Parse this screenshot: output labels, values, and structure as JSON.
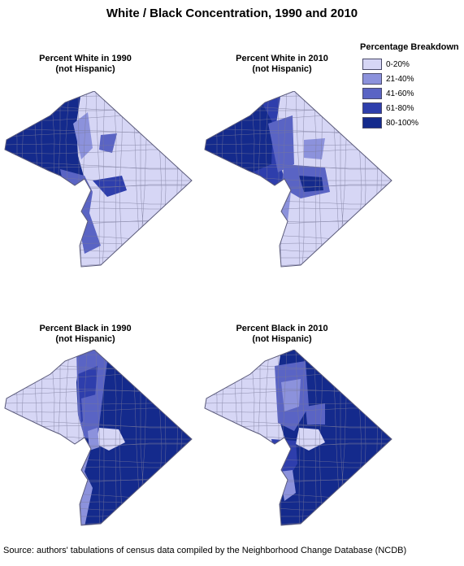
{
  "title": "White / Black Concentration, 1990 and 2010",
  "panels": [
    {
      "line1": "Percent White in 1990",
      "line2": "(not Hispanic)"
    },
    {
      "line1": "Percent White in 2010",
      "line2": "(not Hispanic)"
    },
    {
      "line1": "Percent Black in 1990",
      "line2": "(not Hispanic)"
    },
    {
      "line1": "Percent Black in 2010",
      "line2": "(not Hispanic)"
    }
  ],
  "legend": {
    "title": "Percentage Breakdown",
    "items": [
      {
        "label": "0-20%",
        "color": "#d6d6f5"
      },
      {
        "label": "21-40%",
        "color": "#8c92dc"
      },
      {
        "label": "41-60%",
        "color": "#5a64c4"
      },
      {
        "label": "61-80%",
        "color": "#2e3eac"
      },
      {
        "label": "80-100%",
        "color": "#142a8c"
      }
    ]
  },
  "source": "Source: authors' tabulations of census data compiled by the Neighborhood Change Database (NCDB)"
}
